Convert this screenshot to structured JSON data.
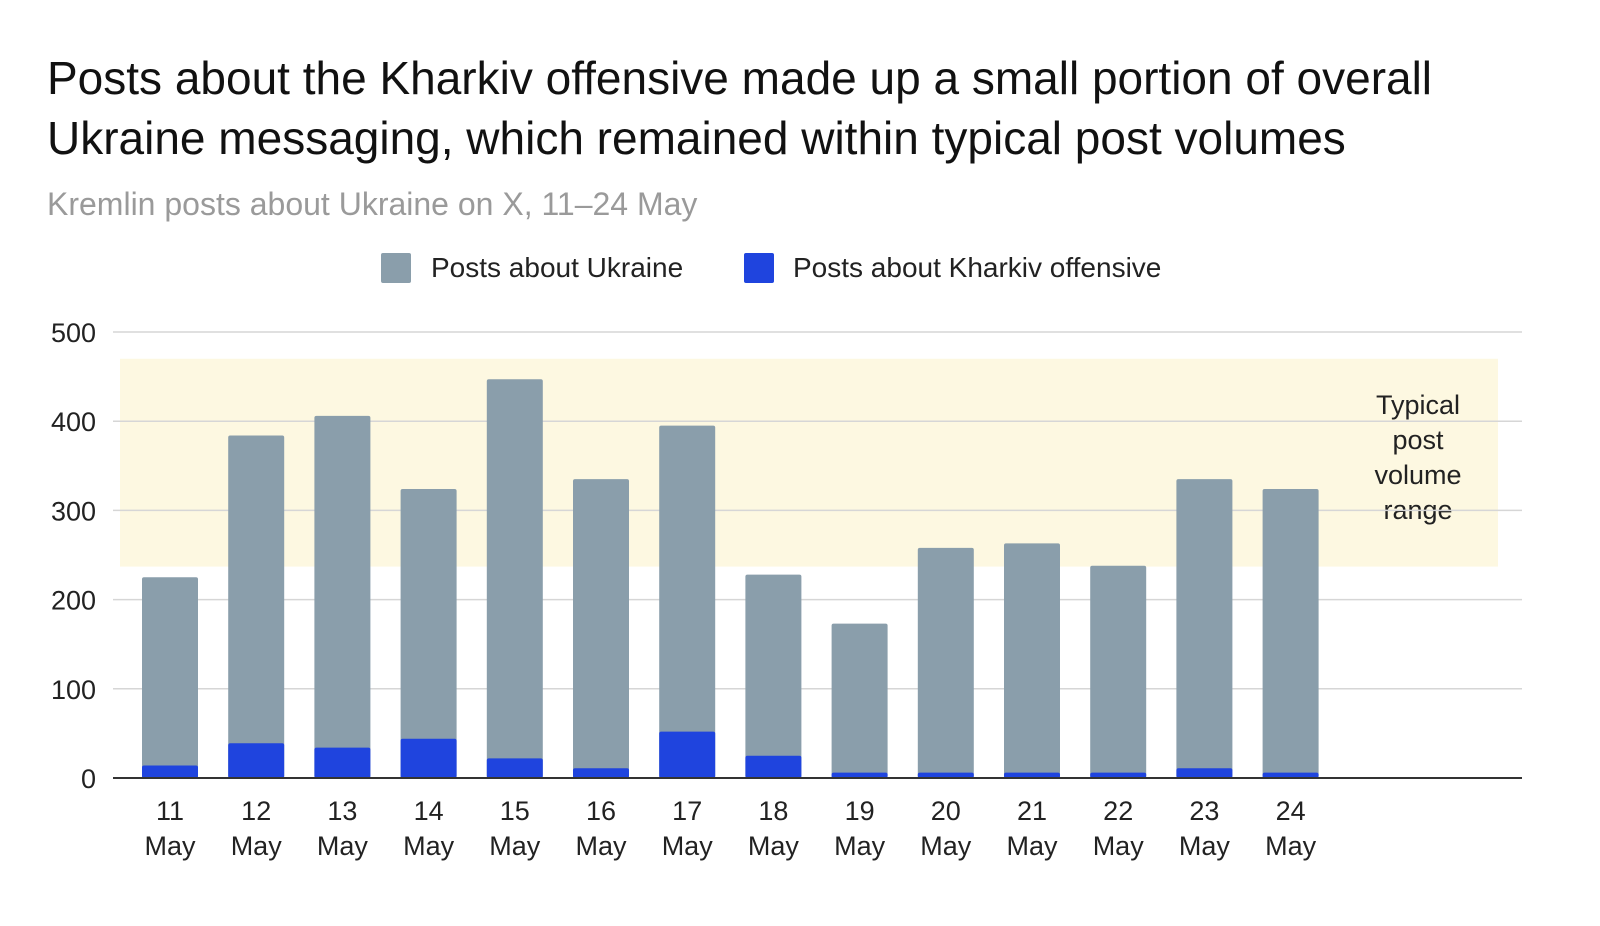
{
  "header": {
    "title": "Posts about the Kharkiv offensive made up a small portion of overall Ukraine messaging, which remained within typical post volumes",
    "subtitle": "Kremlin posts about Ukraine on X, 11–24 May"
  },
  "chart_data": {
    "type": "bar",
    "stacked": false,
    "overlapping": true,
    "categories": [
      "11 May",
      "12 May",
      "13 May",
      "14 May",
      "15 May",
      "16 May",
      "17 May",
      "18 May",
      "19 May",
      "20 May",
      "21 May",
      "22 May",
      "23 May",
      "24 May"
    ],
    "series": [
      {
        "name": "Posts about Ukraine",
        "color": "#8a9eab",
        "values": [
          225,
          384,
          406,
          324,
          447,
          335,
          395,
          228,
          173,
          258,
          263,
          238,
          335,
          324
        ]
      },
      {
        "name": "Posts about Kharkiv offensive",
        "color": "#1f44de",
        "values": [
          14,
          39,
          34,
          44,
          22,
          11,
          52,
          25,
          6,
          6,
          6,
          6,
          11,
          6
        ]
      }
    ],
    "ylim": [
      0,
      500
    ],
    "yticks": [
      0,
      100,
      200,
      300,
      400,
      500
    ],
    "grid": true,
    "legend_position": "top-center",
    "annotation_band": {
      "label_lines": [
        "Typical",
        "post",
        "volume",
        "range"
      ],
      "y_from": 237,
      "y_to": 470,
      "color": "#fdf8e1"
    }
  }
}
